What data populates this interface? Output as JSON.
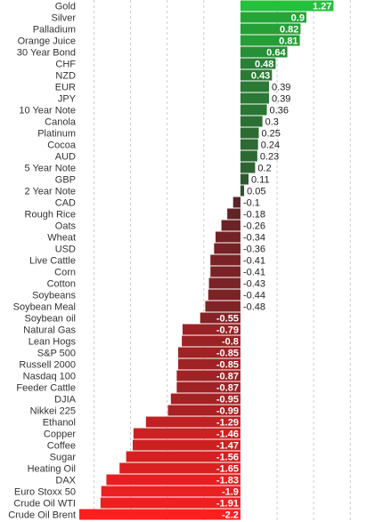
{
  "chart_data": {
    "type": "bar",
    "orientation": "horizontal",
    "title": "",
    "xlabel": "",
    "ylabel": "",
    "xlim": [
      -2.2,
      1.8
    ],
    "grid": true,
    "legend": "none",
    "colors": {
      "positive_strong": "#22c23a",
      "positive_weak": "#2f4a30",
      "negative_weak": "#4a2428",
      "negative_strong": "#ff1f1f",
      "gridline": "#cccccc",
      "label_text": "#333333"
    },
    "categories": [
      "Gold",
      "Silver",
      "Palladium",
      "Orange Juice",
      "30 Year Bond",
      "CHF",
      "NZD",
      "EUR",
      "JPY",
      "10 Year Note",
      "Canola",
      "Platinum",
      "Cocoa",
      "AUD",
      "5 Year Note",
      "GBP",
      "2 Year Note",
      "CAD",
      "Rough Rice",
      "Oats",
      "Wheat",
      "USD",
      "Live Cattle",
      "Corn",
      "Cotton",
      "Soybeans",
      "Soybean Meal",
      "Soybean oil",
      "Natural Gas",
      "Lean Hogs",
      "S&P 500",
      "Russell 2000",
      "Nasdaq 100",
      "Feeder Cattle",
      "DJIA",
      "Nikkei 225",
      "Ethanol",
      "Copper",
      "Coffee",
      "Sugar",
      "Heating Oil",
      "DAX",
      "Euro Stoxx 50",
      "Crude Oil WTI",
      "Crude Oil Brent"
    ],
    "values": [
      1.27,
      0.9,
      0.82,
      0.81,
      0.64,
      0.48,
      0.43,
      0.39,
      0.39,
      0.36,
      0.3,
      0.25,
      0.24,
      0.23,
      0.2,
      0.11,
      0.05,
      -0.1,
      -0.18,
      -0.26,
      -0.34,
      -0.36,
      -0.41,
      -0.41,
      -0.43,
      -0.44,
      -0.48,
      -0.55,
      -0.79,
      -0.8,
      -0.85,
      -0.85,
      -0.87,
      -0.87,
      -0.95,
      -0.99,
      -1.29,
      -1.46,
      -1.47,
      -1.56,
      -1.65,
      -1.83,
      -1.9,
      -1.91,
      -2.2
    ],
    "value_labels": [
      "1.27",
      "0.9",
      "0.82",
      "0.81",
      "0.64",
      "0.48",
      "0.43",
      "0.39",
      "0.39",
      "0.36",
      "0.3",
      "0.25",
      "0.24",
      "0.23",
      "0.2",
      "0.11",
      "0.05",
      "-0.1",
      "-0.18",
      "-0.26",
      "-0.34",
      "-0.36",
      "-0.41",
      "-0.41",
      "-0.43",
      "-0.44",
      "-0.48",
      "-0.55",
      "-0.79",
      "-0.8",
      "-0.85",
      "-0.85",
      "-0.87",
      "-0.87",
      "-0.95",
      "-0.99",
      "-1.29",
      "-1.46",
      "-1.47",
      "-1.56",
      "-1.65",
      "-1.83",
      "-1.9",
      "-1.91",
      "-2.2"
    ]
  }
}
